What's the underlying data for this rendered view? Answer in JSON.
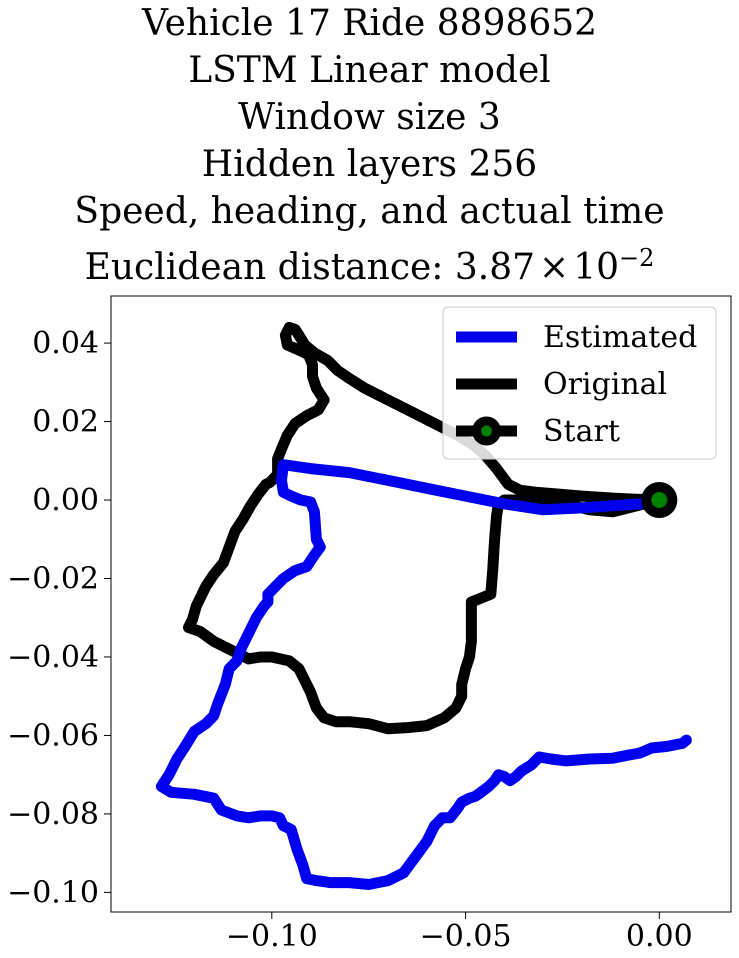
{
  "chart_data": {
    "type": "line",
    "title_lines": [
      "Vehicle 17 Ride 8898652",
      "LSTM Linear model",
      "Window size 3",
      "Hidden layers 256",
      "Speed, heading, and actual time"
    ],
    "distance_label": "Euclidean distance: ",
    "distance_mantissa": "3.87",
    "distance_times": "×",
    "distance_base": "10",
    "distance_exponent": "−2",
    "xlim": [
      -0.1415,
      0.0185
    ],
    "ylim": [
      -0.105,
      0.052
    ],
    "xticks": [
      -0.1,
      -0.05,
      0.0
    ],
    "xtick_labels": [
      "−0.10",
      "−0.05",
      "0.00"
    ],
    "yticks": [
      0.04,
      0.02,
      0.0,
      -0.02,
      -0.04,
      -0.06,
      -0.08,
      -0.1
    ],
    "ytick_labels": [
      "0.04",
      "0.02",
      "0.00",
      "−0.02",
      "−0.04",
      "−0.06",
      "−0.08",
      "−0.10"
    ],
    "grid": false,
    "legend_position": "upper-right",
    "series": [
      {
        "name": "Estimated",
        "color": "#0000ee",
        "points": [
          [
            0.0,
            0.0
          ],
          [
            -0.005,
            -0.001
          ],
          [
            -0.02,
            -0.002
          ],
          [
            -0.03,
            -0.0025
          ],
          [
            -0.04,
            -0.001
          ],
          [
            -0.05,
            0.001
          ],
          [
            -0.06,
            0.003
          ],
          [
            -0.07,
            0.005
          ],
          [
            -0.08,
            0.007
          ],
          [
            -0.09,
            0.008
          ],
          [
            -0.097,
            0.009
          ],
          [
            -0.0975,
            0.005
          ],
          [
            -0.097,
            0.002
          ],
          [
            -0.095,
            0.001
          ],
          [
            -0.0925,
            0.0
          ],
          [
            -0.09,
            -0.0005
          ],
          [
            -0.089,
            -0.003
          ],
          [
            -0.0885,
            -0.01
          ],
          [
            -0.0875,
            -0.012
          ],
          [
            -0.089,
            -0.014
          ],
          [
            -0.091,
            -0.017
          ],
          [
            -0.094,
            -0.018
          ],
          [
            -0.097,
            -0.02
          ],
          [
            -0.099,
            -0.022
          ],
          [
            -0.101,
            -0.024
          ],
          [
            -0.101,
            -0.026
          ],
          [
            -0.102,
            -0.027
          ],
          [
            -0.104,
            -0.03
          ],
          [
            -0.106,
            -0.034
          ],
          [
            -0.108,
            -0.038
          ],
          [
            -0.109,
            -0.041
          ],
          [
            -0.111,
            -0.043
          ],
          [
            -0.112,
            -0.047
          ],
          [
            -0.114,
            -0.052
          ],
          [
            -0.115,
            -0.055
          ],
          [
            -0.117,
            -0.057
          ],
          [
            -0.12,
            -0.059
          ],
          [
            -0.1225,
            -0.063
          ],
          [
            -0.1245,
            -0.066
          ],
          [
            -0.1265,
            -0.07
          ],
          [
            -0.1285,
            -0.073
          ],
          [
            -0.126,
            -0.0745
          ],
          [
            -0.12,
            -0.075
          ],
          [
            -0.115,
            -0.076
          ],
          [
            -0.113,
            -0.079
          ],
          [
            -0.109,
            -0.0805
          ],
          [
            -0.106,
            -0.081
          ],
          [
            -0.103,
            -0.0805
          ],
          [
            -0.1,
            -0.0805
          ],
          [
            -0.098,
            -0.081
          ],
          [
            -0.097,
            -0.083
          ],
          [
            -0.095,
            -0.084
          ],
          [
            -0.0935,
            -0.089
          ],
          [
            -0.092,
            -0.093
          ],
          [
            -0.091,
            -0.0965
          ],
          [
            -0.0885,
            -0.097
          ],
          [
            -0.085,
            -0.0975
          ],
          [
            -0.08,
            -0.0975
          ],
          [
            -0.075,
            -0.098
          ],
          [
            -0.07,
            -0.097
          ],
          [
            -0.066,
            -0.095
          ],
          [
            -0.063,
            -0.091
          ],
          [
            -0.06,
            -0.087
          ],
          [
            -0.058,
            -0.083
          ],
          [
            -0.056,
            -0.081
          ],
          [
            -0.054,
            -0.081
          ],
          [
            -0.052,
            -0.0785
          ],
          [
            -0.051,
            -0.077
          ],
          [
            -0.049,
            -0.076
          ],
          [
            -0.0475,
            -0.0755
          ],
          [
            -0.046,
            -0.0745
          ],
          [
            -0.044,
            -0.073
          ],
          [
            -0.0425,
            -0.0715
          ],
          [
            -0.0415,
            -0.07
          ],
          [
            -0.04,
            -0.0705
          ],
          [
            -0.0385,
            -0.0715
          ],
          [
            -0.037,
            -0.0705
          ],
          [
            -0.0355,
            -0.069
          ],
          [
            -0.033,
            -0.0675
          ],
          [
            -0.031,
            -0.0655
          ],
          [
            -0.028,
            -0.066
          ],
          [
            -0.024,
            -0.0665
          ],
          [
            -0.018,
            -0.066
          ],
          [
            -0.012,
            -0.0658
          ],
          [
            -0.008,
            -0.065
          ],
          [
            -0.005,
            -0.0645
          ],
          [
            -0.002,
            -0.0632
          ],
          [
            0.002,
            -0.0628
          ],
          [
            0.006,
            -0.062
          ],
          [
            0.007,
            -0.0612
          ]
        ]
      },
      {
        "name": "Original",
        "color": "#000000",
        "points": [
          [
            0.0,
            0.0
          ],
          [
            -0.006,
            -0.0015
          ],
          [
            -0.012,
            -0.003
          ],
          [
            -0.018,
            -0.0025
          ],
          [
            -0.024,
            -0.001
          ],
          [
            -0.03,
            -0.0005
          ],
          [
            -0.037,
            0.0
          ],
          [
            -0.04,
            0.0
          ],
          [
            -0.0415,
            -0.001
          ],
          [
            -0.042,
            -0.004
          ],
          [
            -0.0425,
            -0.01
          ],
          [
            -0.043,
            -0.018
          ],
          [
            -0.0435,
            -0.024
          ],
          [
            -0.0485,
            -0.026
          ],
          [
            -0.0485,
            -0.03
          ],
          [
            -0.0485,
            -0.036
          ],
          [
            -0.049,
            -0.04
          ],
          [
            -0.05,
            -0.043
          ],
          [
            -0.051,
            -0.047
          ],
          [
            -0.051,
            -0.05
          ],
          [
            -0.0525,
            -0.053
          ],
          [
            -0.0555,
            -0.0555
          ],
          [
            -0.06,
            -0.0575
          ],
          [
            -0.065,
            -0.058
          ],
          [
            -0.07,
            -0.0583
          ],
          [
            -0.075,
            -0.057
          ],
          [
            -0.08,
            -0.0565
          ],
          [
            -0.0835,
            -0.0565
          ],
          [
            -0.0865,
            -0.0555
          ],
          [
            -0.0885,
            -0.053
          ],
          [
            -0.09,
            -0.049
          ],
          [
            -0.0915,
            -0.046
          ],
          [
            -0.093,
            -0.043
          ],
          [
            -0.0955,
            -0.041
          ],
          [
            -0.1,
            -0.04
          ],
          [
            -0.103,
            -0.04
          ],
          [
            -0.106,
            -0.0405
          ],
          [
            -0.11,
            -0.0385
          ],
          [
            -0.115,
            -0.036
          ],
          [
            -0.1185,
            -0.0335
          ],
          [
            -0.1215,
            -0.0325
          ],
          [
            -0.1205,
            -0.0305
          ],
          [
            -0.1195,
            -0.027
          ],
          [
            -0.117,
            -0.022
          ],
          [
            -0.115,
            -0.019
          ],
          [
            -0.1125,
            -0.016
          ],
          [
            -0.111,
            -0.012
          ],
          [
            -0.1095,
            -0.008
          ],
          [
            -0.1075,
            -0.005
          ],
          [
            -0.1055,
            -0.0015
          ],
          [
            -0.1035,
            0.0015
          ],
          [
            -0.1015,
            0.004
          ],
          [
            -0.1005,
            0.0045
          ],
          [
            -0.0985,
            0.0065
          ],
          [
            -0.0985,
            0.0105
          ],
          [
            -0.0975,
            0.013
          ],
          [
            -0.096,
            0.0165
          ],
          [
            -0.094,
            0.0195
          ],
          [
            -0.091,
            0.0215
          ],
          [
            -0.088,
            0.023
          ],
          [
            -0.0865,
            0.0255
          ],
          [
            -0.0875,
            0.027
          ],
          [
            -0.0885,
            0.0285
          ],
          [
            -0.0895,
            0.0315
          ],
          [
            -0.0895,
            0.0345
          ],
          [
            -0.0905,
            0.037
          ],
          [
            -0.0925,
            0.038
          ],
          [
            -0.096,
            0.0395
          ],
          [
            -0.0965,
            0.042
          ],
          [
            -0.0955,
            0.044
          ],
          [
            -0.094,
            0.0435
          ],
          [
            -0.093,
            0.042
          ],
          [
            -0.0915,
            0.0395
          ],
          [
            -0.089,
            0.0375
          ],
          [
            -0.0855,
            0.0355
          ],
          [
            -0.083,
            0.033
          ],
          [
            -0.08,
            0.031
          ],
          [
            -0.076,
            0.0285
          ],
          [
            -0.07,
            0.0255
          ],
          [
            -0.064,
            0.0225
          ],
          [
            -0.058,
            0.0195
          ],
          [
            -0.052,
            0.0165
          ],
          [
            -0.048,
            0.014
          ],
          [
            -0.045,
            0.0115
          ],
          [
            -0.042,
            0.008
          ],
          [
            -0.039,
            0.004
          ],
          [
            -0.036,
            0.0025
          ],
          [
            -0.032,
            0.002
          ],
          [
            -0.026,
            0.0015
          ],
          [
            -0.02,
            0.001
          ],
          [
            -0.012,
            0.0005
          ],
          [
            -0.006,
            0.0002
          ],
          [
            0.0,
            0.0
          ]
        ]
      }
    ],
    "start_marker": {
      "name": "Start",
      "x": 0.0,
      "y": 0.0,
      "fill": "#008000",
      "edge": "#000000"
    }
  }
}
